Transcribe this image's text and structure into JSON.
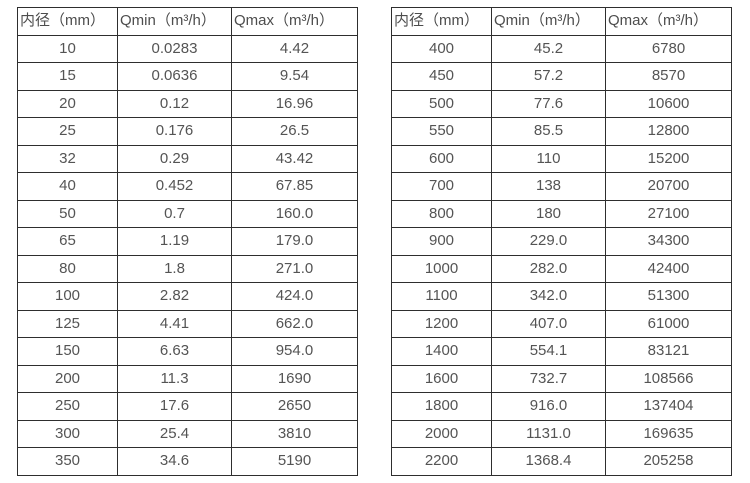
{
  "columns": [
    "内径（mm）",
    "Qmin（m³/h）",
    "Qmax（m³/h）"
  ],
  "colors": {
    "border": "#2e2e2e",
    "text": "#545454",
    "background": "#ffffff"
  },
  "tables": [
    {
      "name": "left-flow-table",
      "rows": [
        [
          "10",
          "0.0283",
          "4.42"
        ],
        [
          "15",
          "0.0636",
          "9.54"
        ],
        [
          "20",
          "0.12",
          "16.96"
        ],
        [
          "25",
          "0.176",
          "26.5"
        ],
        [
          "32",
          "0.29",
          "43.42"
        ],
        [
          "40",
          "0.452",
          "67.85"
        ],
        [
          "50",
          "0.7",
          "160.0"
        ],
        [
          "65",
          "1.19",
          "179.0"
        ],
        [
          "80",
          "1.8",
          "271.0"
        ],
        [
          "100",
          "2.82",
          "424.0"
        ],
        [
          "125",
          "4.41",
          "662.0"
        ],
        [
          "150",
          "6.63",
          "954.0"
        ],
        [
          "200",
          "11.3",
          "1690"
        ],
        [
          "250",
          "17.6",
          "2650"
        ],
        [
          "300",
          "25.4",
          "3810"
        ],
        [
          "350",
          "34.6",
          "5190"
        ]
      ]
    },
    {
      "name": "right-flow-table",
      "rows": [
        [
          "400",
          "45.2",
          "6780"
        ],
        [
          "450",
          "57.2",
          "8570"
        ],
        [
          "500",
          "77.6",
          "10600"
        ],
        [
          "550",
          "85.5",
          "12800"
        ],
        [
          "600",
          "110",
          "15200"
        ],
        [
          "700",
          "138",
          "20700"
        ],
        [
          "800",
          "180",
          "27100"
        ],
        [
          "900",
          "229.0",
          "34300"
        ],
        [
          "1000",
          "282.0",
          "42400"
        ],
        [
          "1100",
          "342.0",
          "51300"
        ],
        [
          "1200",
          "407.0",
          "61000"
        ],
        [
          "1400",
          "554.1",
          "83121"
        ],
        [
          "1600",
          "732.7",
          "108566"
        ],
        [
          "1800",
          "916.0",
          "137404"
        ],
        [
          "2000",
          "1131.0",
          "169635"
        ],
        [
          "2200",
          "1368.4",
          "205258"
        ]
      ]
    }
  ]
}
